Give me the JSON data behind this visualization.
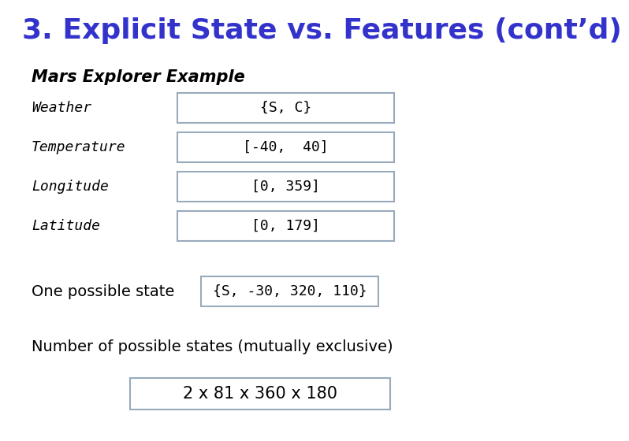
{
  "title": "3. Explicit State vs. Features (cont’d)",
  "title_color": "#3333cc",
  "title_fontsize": 26,
  "subtitle": "Mars Explorer Example",
  "subtitle_fontsize": 15,
  "rows": [
    {
      "label": "Weather",
      "value": "{S, C}"
    },
    {
      "label": "Temperature",
      "value": "[-40,  40]"
    },
    {
      "label": "Longitude",
      "value": "[0, 359]"
    },
    {
      "label": "Latitude",
      "value": "[0, 179]"
    }
  ],
  "label_font": "monospace",
  "label_fontsize": 13,
  "value_fontsize": 13,
  "box_edgecolor": "#99aabb",
  "box_facecolor": "#ffffff",
  "one_possible_label": "One possible state",
  "one_possible_value": "{S, -30, 320, 110}",
  "one_possible_fontsize": 14,
  "num_states_label": "Number of possible states (mutually exclusive)",
  "num_states_value": "2 x 81 x 360 x 180",
  "num_states_fontsize": 14,
  "background_color": "#ffffff"
}
